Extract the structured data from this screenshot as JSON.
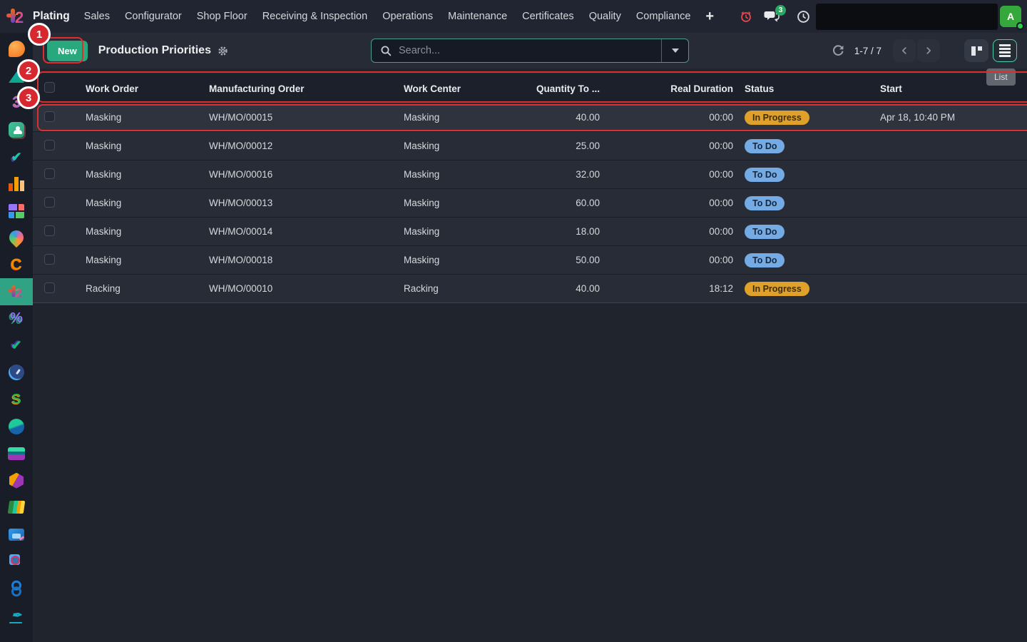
{
  "navbar": {
    "app_name": "Plating",
    "menu_items": [
      "Sales",
      "Configurator",
      "Shop Floor",
      "Receiving & Inspection",
      "Operations",
      "Maintenance",
      "Certificates",
      "Quality",
      "Compliance"
    ],
    "plus_label": "+",
    "chat_badge": "3",
    "avatar_initial": "A"
  },
  "control_panel": {
    "new_button_label": "New",
    "title": "Production Priorities",
    "search_placeholder": "Search...",
    "pager_text": "1-7 / 7",
    "list_tooltip": "List"
  },
  "table": {
    "columns": [
      "Work Order",
      "Manufacturing Order",
      "Work Center",
      "Quantity To ...",
      "Real Duration",
      "Status",
      "Start"
    ],
    "rows": [
      {
        "work_order": "Masking",
        "manufacturing_order": "WH/MO/00015",
        "work_center": "Masking",
        "quantity": "40.00",
        "real_duration": "00:00",
        "status": "In Progress",
        "status_type": "inprog",
        "start": "Apr 18, 10:40 PM",
        "highlight": true
      },
      {
        "work_order": "Masking",
        "manufacturing_order": "WH/MO/00012",
        "work_center": "Masking",
        "quantity": "25.00",
        "real_duration": "00:00",
        "status": "To Do",
        "status_type": "todo",
        "start": "",
        "highlight": false
      },
      {
        "work_order": "Masking",
        "manufacturing_order": "WH/MO/00016",
        "work_center": "Masking",
        "quantity": "32.00",
        "real_duration": "00:00",
        "status": "To Do",
        "status_type": "todo",
        "start": "",
        "highlight": false
      },
      {
        "work_order": "Masking",
        "manufacturing_order": "WH/MO/00013",
        "work_center": "Masking",
        "quantity": "60.00",
        "real_duration": "00:00",
        "status": "To Do",
        "status_type": "todo",
        "start": "",
        "highlight": false
      },
      {
        "work_order": "Masking",
        "manufacturing_order": "WH/MO/00014",
        "work_center": "Masking",
        "quantity": "18.00",
        "real_duration": "00:00",
        "status": "To Do",
        "status_type": "todo",
        "start": "",
        "highlight": false
      },
      {
        "work_order": "Masking",
        "manufacturing_order": "WH/MO/00018",
        "work_center": "Masking",
        "quantity": "50.00",
        "real_duration": "00:00",
        "status": "To Do",
        "status_type": "todo",
        "start": "",
        "highlight": false
      },
      {
        "work_order": "Racking",
        "manufacturing_order": "WH/MO/00010",
        "work_center": "Racking",
        "quantity": "40.00",
        "real_duration": "18:12",
        "status": "In Progress",
        "status_type": "inprog",
        "start": "",
        "highlight": false
      }
    ]
  },
  "sidebar": {
    "icons": [
      {
        "name": "discuss",
        "shape": "blob-orange"
      },
      {
        "name": "triangle-app",
        "shape": "triangle-teal"
      },
      {
        "name": "numeral-three-app",
        "shape": "text-purple",
        "glyph": "3"
      },
      {
        "name": "contacts",
        "shape": "card-green"
      },
      {
        "name": "check-duo-app",
        "shape": "check-duo",
        "glyph": "✔"
      },
      {
        "name": "bar-chart-app",
        "shape": "bars-orange"
      },
      {
        "name": "blocks-app",
        "shape": "blocks-multi"
      },
      {
        "name": "map-pin-app",
        "shape": "pin-rainbow"
      },
      {
        "name": "letter-c-app",
        "shape": "text-orange",
        "glyph": "C"
      },
      {
        "name": "plating",
        "shape": "plating-logo",
        "active": true
      },
      {
        "name": "percent-app",
        "shape": "text-purpteal",
        "glyph": "%"
      },
      {
        "name": "check-teal-app",
        "shape": "check-teal",
        "glyph": "✔"
      },
      {
        "name": "clock-app",
        "shape": "clock-blue"
      },
      {
        "name": "letter-s-app",
        "shape": "text-green",
        "glyph": "S"
      },
      {
        "name": "globe-app",
        "shape": "globe-teal"
      },
      {
        "name": "layers-app",
        "shape": "layers"
      },
      {
        "name": "hexagon-app",
        "shape": "hex"
      },
      {
        "name": "books-app",
        "shape": "books"
      },
      {
        "name": "board-app",
        "shape": "board"
      },
      {
        "name": "doc-search-app",
        "shape": "doc-search"
      },
      {
        "name": "link-app",
        "shape": "link-blue"
      },
      {
        "name": "signature-app",
        "shape": "signature",
        "glyph": "✒"
      },
      {
        "name": "dot-app",
        "shape": "dot-purple"
      }
    ]
  },
  "annotations": {
    "labels": [
      "1",
      "2",
      "3"
    ]
  },
  "colors": {
    "accent_green": "#2aa87d",
    "search_border": "#4b9d86",
    "badge_todo": "#74abe4",
    "badge_in_progress": "#e0a12a",
    "annotation_red": "#dc2f2f",
    "avatar_green": "#35a83c",
    "active_app_bg": "#2fa384",
    "navbar_bg": "#212531",
    "sidebar_bg": "#191d28"
  }
}
